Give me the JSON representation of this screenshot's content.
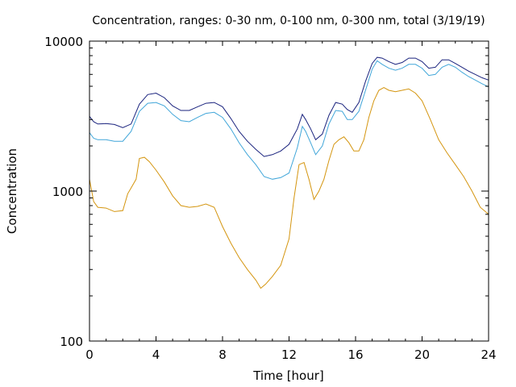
{
  "chart_data": {
    "type": "line",
    "title": "Concentration, ranges: 0-30 nm, 0-100 nm, 0-300 nm, total (3/19/19)",
    "xlabel": "Time [hour]",
    "ylabel": "Concentration",
    "xlim": [
      0,
      24
    ],
    "ylim": [
      100,
      10000
    ],
    "yscale": "log",
    "grid": false,
    "legend": "none",
    "x_ticks": [
      "0",
      "4",
      "8",
      "12",
      "16",
      "20",
      "24"
    ],
    "x_tick_values": [
      0,
      4,
      8,
      12,
      16,
      20,
      24
    ],
    "y_ticks": [
      "100",
      "1000",
      "10000"
    ],
    "y_tick_values": [
      100,
      1000,
      10000
    ],
    "series": [
      {
        "color": "#1a237e",
        "x": [
          0,
          0.25,
          0.5,
          1,
          1.5,
          2,
          2.5,
          3,
          3.5,
          4,
          4.5,
          5,
          5.5,
          6,
          6.5,
          7,
          7.5,
          8,
          8.5,
          9,
          9.5,
          10,
          10.5,
          11,
          11.5,
          12,
          12.5,
          12.8,
          13,
          13.3,
          13.6,
          14,
          14.4,
          14.8,
          15.2,
          15.5,
          15.8,
          16.2,
          16.6,
          17,
          17.3,
          17.6,
          18,
          18.4,
          18.8,
          19.2,
          19.6,
          20,
          20.4,
          20.8,
          21.2,
          21.6,
          22,
          22.4,
          22.8,
          23.2,
          23.6,
          24
        ],
        "y": [
          3150,
          2900,
          2800,
          2820,
          2780,
          2650,
          2800,
          3800,
          4400,
          4500,
          4200,
          3700,
          3450,
          3450,
          3650,
          3850,
          3900,
          3650,
          3050,
          2500,
          2150,
          1900,
          1700,
          1750,
          1850,
          2050,
          2600,
          3250,
          3000,
          2600,
          2200,
          2400,
          3200,
          3900,
          3800,
          3500,
          3350,
          3900,
          5400,
          7100,
          7800,
          7700,
          7300,
          7000,
          7200,
          7700,
          7700,
          7300,
          6600,
          6700,
          7500,
          7500,
          7100,
          6700,
          6300,
          6000,
          5700,
          5500
        ]
      },
      {
        "color": "#41a6d9",
        "x": [
          0,
          0.25,
          0.5,
          1,
          1.5,
          2,
          2.5,
          3,
          3.5,
          4,
          4.5,
          5,
          5.5,
          6,
          6.5,
          7,
          7.5,
          8,
          8.5,
          9,
          9.5,
          10,
          10.5,
          11,
          11.5,
          12,
          12.5,
          12.8,
          13,
          13.3,
          13.6,
          14,
          14.4,
          14.8,
          15.2,
          15.5,
          15.8,
          16.2,
          16.6,
          17,
          17.3,
          17.6,
          18,
          18.4,
          18.8,
          19.2,
          19.6,
          20,
          20.4,
          20.8,
          21.2,
          21.6,
          22,
          22.4,
          22.8,
          23.2,
          23.6,
          24
        ],
        "y": [
          2450,
          2250,
          2200,
          2200,
          2150,
          2150,
          2500,
          3400,
          3850,
          3900,
          3700,
          3250,
          2950,
          2900,
          3100,
          3300,
          3350,
          3100,
          2600,
          2100,
          1750,
          1500,
          1250,
          1200,
          1230,
          1320,
          1950,
          2700,
          2500,
          2100,
          1750,
          2000,
          2800,
          3450,
          3400,
          3000,
          3000,
          3400,
          4700,
          6500,
          7400,
          7000,
          6600,
          6400,
          6600,
          7000,
          7000,
          6600,
          5900,
          6000,
          6700,
          7000,
          6700,
          6200,
          5800,
          5500,
          5200,
          4950
        ]
      },
      {
        "color": "#d4950f",
        "x": [
          0,
          0.25,
          0.5,
          1,
          1.5,
          2,
          2.3,
          2.5,
          2.8,
          3,
          3.3,
          3.6,
          4,
          4.5,
          5,
          5.5,
          6,
          6.5,
          7,
          7.5,
          8,
          8.5,
          9,
          9.5,
          10,
          10.3,
          10.6,
          11,
          11.5,
          12,
          12.3,
          12.6,
          12.9,
          13.2,
          13.5,
          13.8,
          14.1,
          14.4,
          14.7,
          15,
          15.3,
          15.6,
          15.9,
          16.2,
          16.5,
          16.8,
          17.1,
          17.4,
          17.7,
          18,
          18.4,
          18.8,
          19.2,
          19.6,
          20,
          20.5,
          21,
          21.5,
          22,
          22.5,
          23,
          23.5,
          24
        ],
        "y": [
          1200,
          850,
          780,
          770,
          730,
          740,
          960,
          1050,
          1200,
          1650,
          1680,
          1570,
          1380,
          1150,
          930,
          800,
          780,
          790,
          820,
          780,
          580,
          450,
          360,
          300,
          255,
          225,
          240,
          270,
          320,
          480,
          900,
          1500,
          1550,
          1200,
          880,
          1000,
          1200,
          1600,
          2050,
          2200,
          2300,
          2100,
          1850,
          1850,
          2200,
          3100,
          4000,
          4700,
          4900,
          4700,
          4600,
          4700,
          4800,
          4500,
          4000,
          3000,
          2200,
          1800,
          1500,
          1250,
          1000,
          780,
          700
        ]
      }
    ]
  }
}
